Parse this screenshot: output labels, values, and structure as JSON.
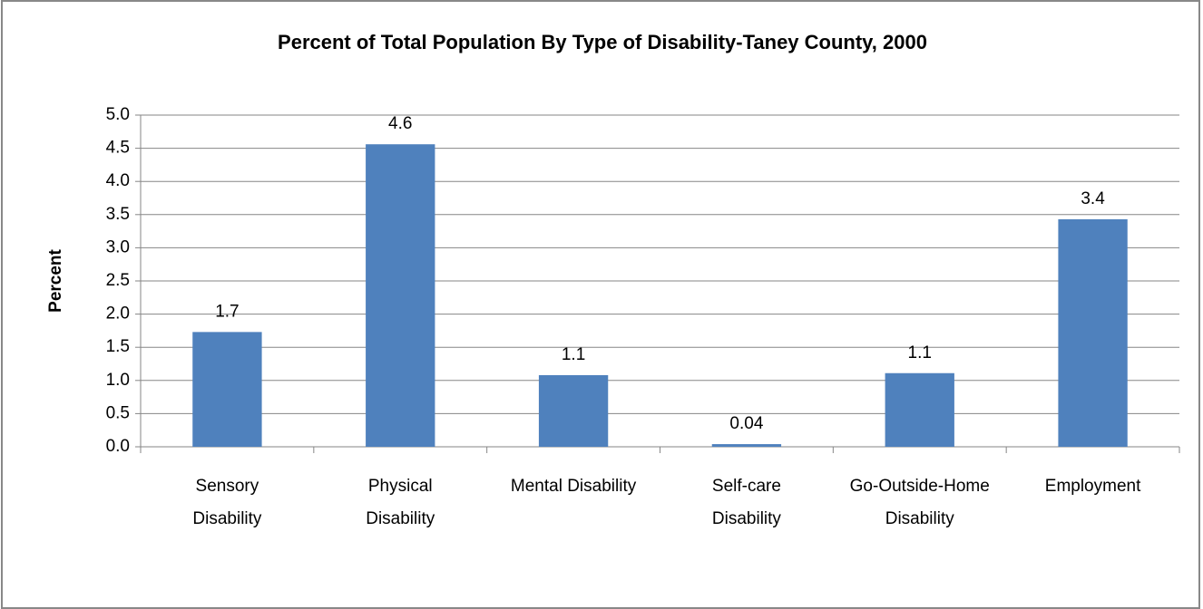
{
  "chart_data": {
    "type": "bar",
    "title": "Percent of Total Population By Type of Disability-Taney County, 2000",
    "y_label": "Percent",
    "categories": [
      "Sensory Disability",
      "Physical Disability",
      "Mental Disability",
      "Self-care Disability",
      "Go-Outside-Home Disability",
      "Employment"
    ],
    "values": [
      1.73,
      4.56,
      1.08,
      0.04,
      1.11,
      3.43
    ],
    "value_labels": [
      "1.7",
      "4.6",
      "1.1",
      "0.04",
      "1.1",
      "3.4"
    ],
    "color": "#4f81bd",
    "ylim": [
      0,
      5
    ],
    "yticks": [
      {
        "value": 0,
        "label": "0.0"
      },
      0.5,
      {
        "value": 1,
        "label": "1.0"
      },
      1.5,
      {
        "value": 2,
        "label": "2.0"
      },
      2.5,
      {
        "value": 3,
        "label": "3.0"
      },
      3.5,
      {
        "value": 4,
        "label": "4.0"
      },
      4.5,
      {
        "value": 5,
        "label": "5.0"
      }
    ],
    "grid": true
  }
}
